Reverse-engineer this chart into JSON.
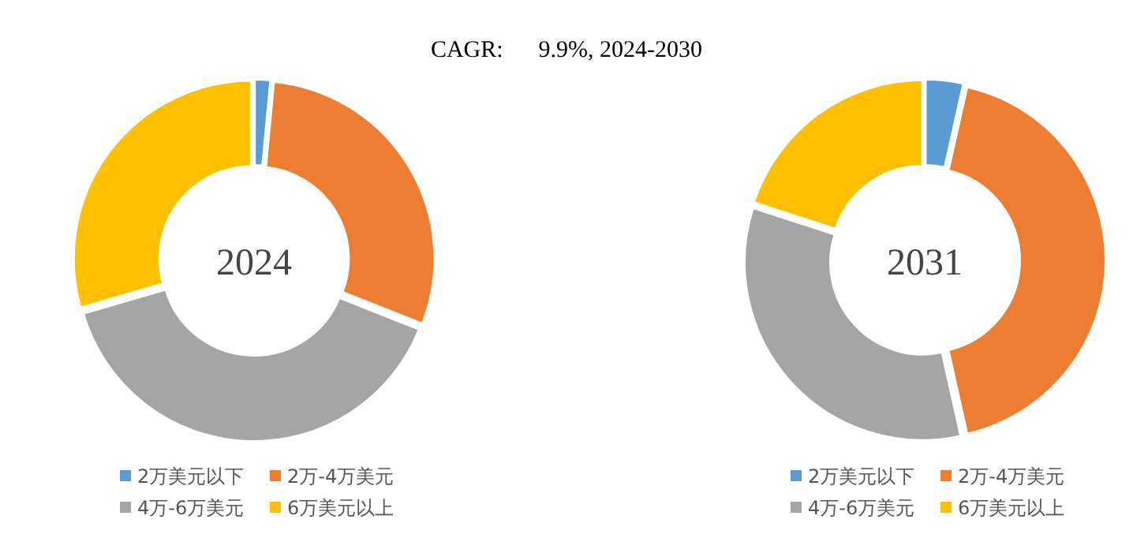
{
  "chart_data": [
    {
      "type": "donut",
      "title": "CAGR:      9.9%, 2024-2030",
      "annotations": [
        "2024"
      ],
      "categories": [
        "2万美元以下",
        "2万-4万美元",
        "4万-6万美元",
        "6万美元以上"
      ],
      "values": [
        1.5,
        29.5,
        39.5,
        29.5
      ],
      "colors": [
        "#5b9bd5",
        "#ed7d31",
        "#a5a5a5",
        "#ffc000"
      ],
      "legend": "bottom"
    },
    {
      "type": "donut",
      "annotations": [
        "2031"
      ],
      "categories": [
        "2万美元以下",
        "2万-4万美元",
        "4万-6万美元",
        "6万美元以上"
      ],
      "values": [
        3.5,
        43,
        33.5,
        20
      ],
      "colors": [
        "#5b9bd5",
        "#ed7d31",
        "#a5a5a5",
        "#ffc000"
      ],
      "legend": "bottom"
    }
  ]
}
